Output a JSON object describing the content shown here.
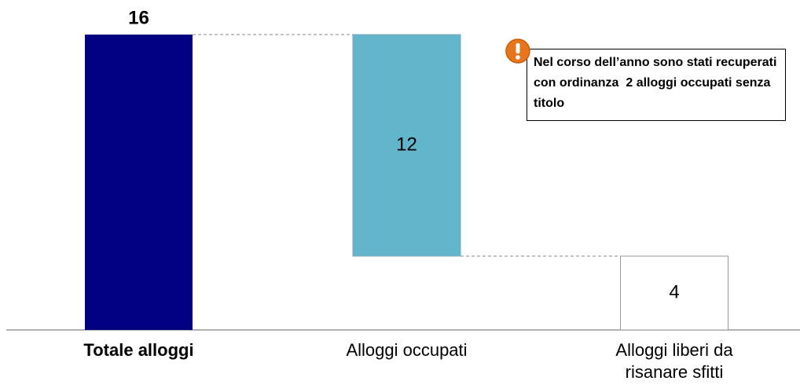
{
  "chart_data": {
    "type": "waterfall",
    "categories": [
      "Totale alloggi",
      "Alloggi occupati",
      "Alloggi liberi da risanare sfitti"
    ],
    "values": [
      16,
      12,
      4
    ],
    "measures": [
      "total",
      "decrease",
      "decrease"
    ],
    "colors": [
      "#000080",
      "#63b5cc",
      "#ffffff"
    ],
    "annotation": "Nel corso dell’anno sono stati recuperati con ordinanza  2 alloggi occupati senza titolo"
  }
}
